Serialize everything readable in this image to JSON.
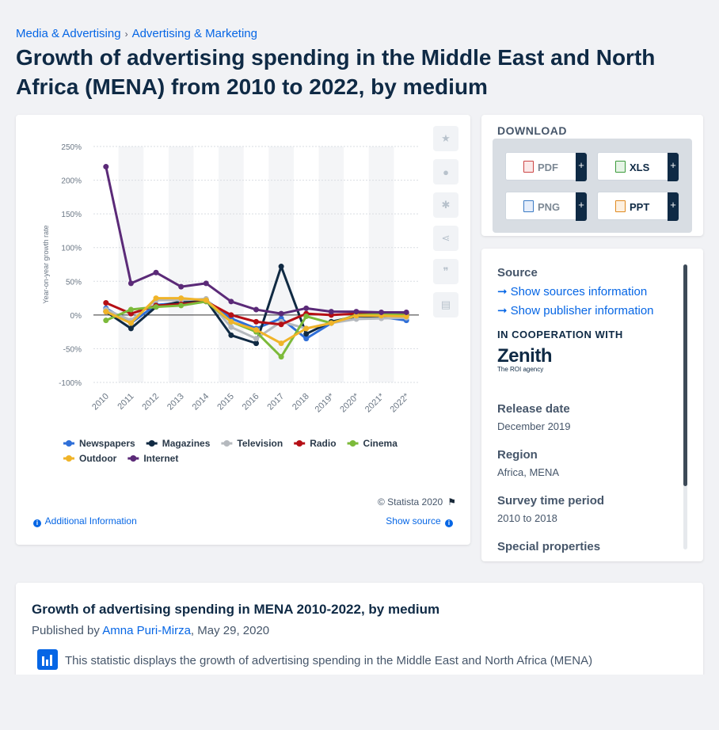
{
  "breadcrumb": {
    "item1": "Media & Advertising",
    "sep": "›",
    "item2": "Advertising & Marketing"
  },
  "page_title": "Growth of advertising spending in the Middle East and North Africa (MENA) from 2010 to 2022, by medium",
  "chart_footer": {
    "copyright": "© Statista 2020",
    "additional_info": "Additional Information",
    "show_source": "Show source"
  },
  "download": {
    "title": "DOWNLOAD",
    "buttons": [
      {
        "label": "PDF",
        "icon": "pdf-file-icon"
      },
      {
        "label": "XLS",
        "icon": "xls-file-icon"
      },
      {
        "label": "PNG",
        "icon": "png-file-icon"
      },
      {
        "label": "PPT",
        "icon": "ppt-file-icon"
      }
    ],
    "plus": "+"
  },
  "source": {
    "heading": "Source",
    "link1": "Show sources information",
    "link2": "Show publisher information",
    "coop_heading": "IN COOPERATION WITH",
    "logo_word": "Zenith",
    "logo_sub": "The ROI agency",
    "release_h": "Release date",
    "release_v": "December 2019",
    "region_h": "Region",
    "region_v": "Africa, MENA",
    "survey_h": "Survey time period",
    "survey_v": "2010 to 2018",
    "special_h": "Special properties"
  },
  "description": {
    "title": "Growth of advertising spending in MENA 2010-2022, by medium",
    "published_prefix": "Published by ",
    "author": "Amna Puri-Mirza",
    "date": ", May 29, 2020",
    "text": "This statistic displays the growth of advertising spending in the Middle East and North Africa (MENA)"
  },
  "colors": {
    "Newspapers": "#2f6fd8",
    "Magazines": "#102a43",
    "Television": "#b5b9be",
    "Radio": "#b50f15",
    "Cinema": "#7cba3a",
    "Outdoor": "#f0b429",
    "Internet": "#5b2a78"
  },
  "chart_data": {
    "type": "line",
    "title": "",
    "ylabel": "Year-on-year growth rate",
    "xlabel": "",
    "x": [
      "2010",
      "2011",
      "2012",
      "2013",
      "2014",
      "2015",
      "2016",
      "2017",
      "2018",
      "2019*",
      "2020*",
      "2021*",
      "2022*"
    ],
    "ylim": [
      -100,
      250
    ],
    "yticks": [
      -100,
      -50,
      0,
      50,
      100,
      150,
      200,
      250
    ],
    "ytick_labels": [
      "-100%",
      "-50%",
      "0%",
      "50%",
      "100%",
      "150%",
      "200%",
      "250%"
    ],
    "series": [
      {
        "name": "Newspapers",
        "values": [
          10,
          -12,
          15,
          18,
          22,
          -5,
          -20,
          -5,
          -35,
          -12,
          -2,
          -3,
          -8
        ]
      },
      {
        "name": "Magazines",
        "values": [
          5,
          -20,
          12,
          20,
          22,
          -30,
          -42,
          72,
          -28,
          -10,
          -2,
          -2,
          -1
        ]
      },
      {
        "name": "Television",
        "values": [
          8,
          -8,
          22,
          22,
          24,
          -18,
          -35,
          -10,
          -20,
          -12,
          -6,
          -5,
          -4
        ]
      },
      {
        "name": "Radio",
        "values": [
          18,
          2,
          14,
          16,
          20,
          0,
          -10,
          -14,
          2,
          0,
          2,
          2,
          2
        ]
      },
      {
        "name": "Cinema",
        "values": [
          -8,
          8,
          12,
          14,
          20,
          -10,
          -25,
          -62,
          -2,
          -12,
          0,
          1,
          0
        ]
      },
      {
        "name": "Outdoor",
        "values": [
          5,
          -12,
          25,
          25,
          22,
          -10,
          -22,
          -42,
          -20,
          -12,
          -1,
          -1,
          -2
        ]
      },
      {
        "name": "Internet",
        "values": [
          220,
          47,
          63,
          42,
          47,
          20,
          8,
          2,
          10,
          5,
          5,
          4,
          4
        ]
      }
    ],
    "legend": [
      "Newspapers",
      "Magazines",
      "Television",
      "Radio",
      "Cinema",
      "Outdoor",
      "Internet"
    ],
    "legend_position": "bottom",
    "grid": true
  }
}
